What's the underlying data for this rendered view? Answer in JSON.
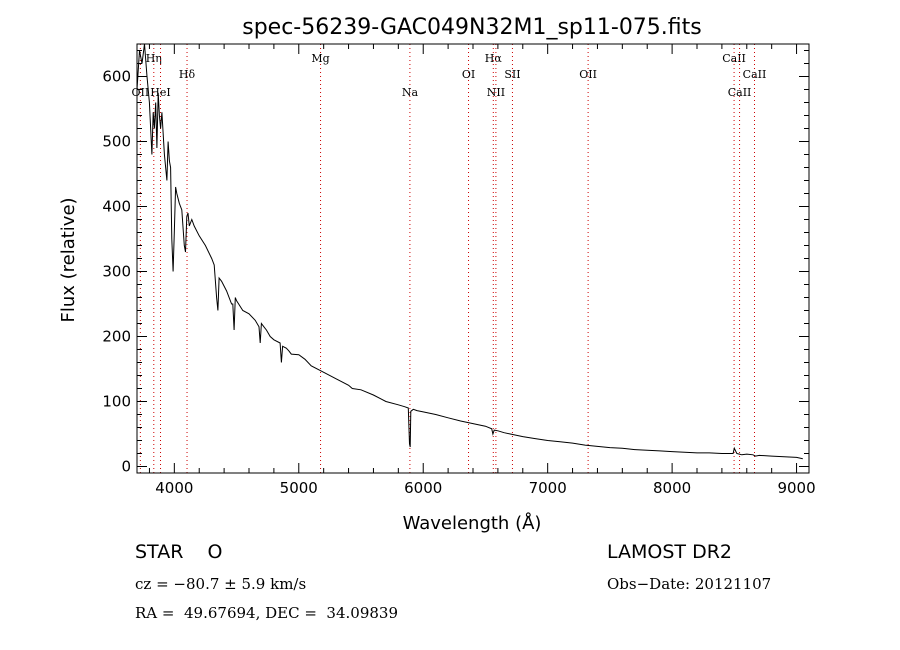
{
  "chart_data": {
    "type": "line",
    "title": "spec-56239-GAC049N32M1_sp11-075.fits",
    "xlabel": "Wavelength (Å)",
    "ylabel": "Flux (relative)",
    "xlim": [
      3700,
      9100
    ],
    "ylim": [
      -10,
      650
    ],
    "xticks": [
      4000,
      5000,
      6000,
      7000,
      8000,
      9000
    ],
    "yticks": [
      0,
      100,
      200,
      300,
      400,
      500,
      600
    ],
    "line_color": "#000000",
    "marker_color": "#cc0000",
    "spectral_lines": [
      {
        "label": "OII",
        "wavelength": 3727,
        "level": 3
      },
      {
        "label": "Hη",
        "wavelength": 3835,
        "level": 1
      },
      {
        "label": "HeI",
        "wavelength": 3889,
        "level": 3
      },
      {
        "label": "Hδ",
        "wavelength": 4102,
        "level": 2
      },
      {
        "label": "Mg",
        "wavelength": 5175,
        "level": 1
      },
      {
        "label": "Na",
        "wavelength": 5893,
        "level": 3
      },
      {
        "label": "OI",
        "wavelength": 6364,
        "level": 2
      },
      {
        "label": "Hα",
        "wavelength": 6563,
        "level": 1
      },
      {
        "label": "NII",
        "wavelength": 6584,
        "level": 3
      },
      {
        "label": "SII",
        "wavelength": 6717,
        "level": 2
      },
      {
        "label": "OII",
        "wavelength": 7325,
        "level": 2
      },
      {
        "label": "CaII",
        "wavelength": 8498,
        "level": 1
      },
      {
        "label": "CaII",
        "wavelength": 8542,
        "level": 3
      },
      {
        "label": "CaII",
        "wavelength": 8662,
        "level": 2
      }
    ],
    "series": [
      {
        "x": [
          3700,
          3720,
          3740,
          3760,
          3780,
          3800,
          3820,
          3830,
          3840,
          3850,
          3860,
          3870,
          3880,
          3890,
          3900,
          3920,
          3940,
          3950,
          3960,
          3970,
          3980,
          3990,
          4000,
          4010,
          4020,
          4040,
          4060,
          4080,
          4090,
          4100,
          4110,
          4120,
          4140,
          4160,
          4200,
          4250,
          4300,
          4320,
          4340,
          4350,
          4360,
          4380,
          4420,
          4460,
          4470,
          4480,
          4490,
          4500,
          4550,
          4600,
          4650,
          4680,
          4690,
          4700,
          4720,
          4740,
          4770,
          4800,
          4850,
          4860,
          4870,
          4900,
          4920,
          4940,
          5000,
          5050,
          5100,
          5200,
          5300,
          5400,
          5430,
          5500,
          5600,
          5700,
          5800,
          5850,
          5880,
          5890,
          5895,
          5900,
          5920,
          5950,
          6000,
          6100,
          6200,
          6300,
          6400,
          6500,
          6550,
          6560,
          6570,
          6600,
          6650,
          6700,
          6800,
          6900,
          7000,
          7100,
          7200,
          7300,
          7400,
          7500,
          7600,
          7700,
          7800,
          7900,
          8000,
          8100,
          8200,
          8300,
          8400,
          8450,
          8490,
          8500,
          8520,
          8540,
          8560,
          8600,
          8650,
          8670,
          8700,
          8800,
          8900,
          9000,
          9050
        ],
        "y": [
          580,
          640,
          620,
          650,
          600,
          560,
          480,
          545,
          520,
          560,
          490,
          575,
          540,
          520,
          545,
          480,
          440,
          500,
          470,
          460,
          350,
          300,
          360,
          430,
          420,
          405,
          395,
          340,
          330,
          385,
          390,
          370,
          380,
          370,
          355,
          340,
          320,
          310,
          260,
          240,
          290,
          285,
          270,
          250,
          250,
          210,
          260,
          255,
          240,
          235,
          225,
          215,
          190,
          220,
          215,
          210,
          200,
          195,
          190,
          160,
          185,
          182,
          178,
          173,
          172,
          165,
          155,
          145,
          135,
          125,
          120,
          118,
          110,
          100,
          95,
          92,
          90,
          35,
          30,
          85,
          88,
          86,
          84,
          80,
          75,
          70,
          66,
          62,
          58,
          50,
          56,
          55,
          52,
          50,
          46,
          43,
          40,
          38,
          36,
          33,
          31,
          29,
          28,
          26,
          25,
          24,
          23,
          22,
          21,
          21,
          20,
          20,
          20,
          28,
          20,
          19,
          18,
          19,
          18,
          16,
          17,
          16,
          15,
          14,
          12
        ]
      }
    ]
  },
  "info": {
    "object_line": "STAR    O",
    "survey": "LAMOST DR2",
    "cz": "cz = −80.7 ± 5.9 km/s",
    "obs_date": "Obs−Date: 20121107",
    "coords": "RA =  49.67694, DEC =  34.09839"
  }
}
